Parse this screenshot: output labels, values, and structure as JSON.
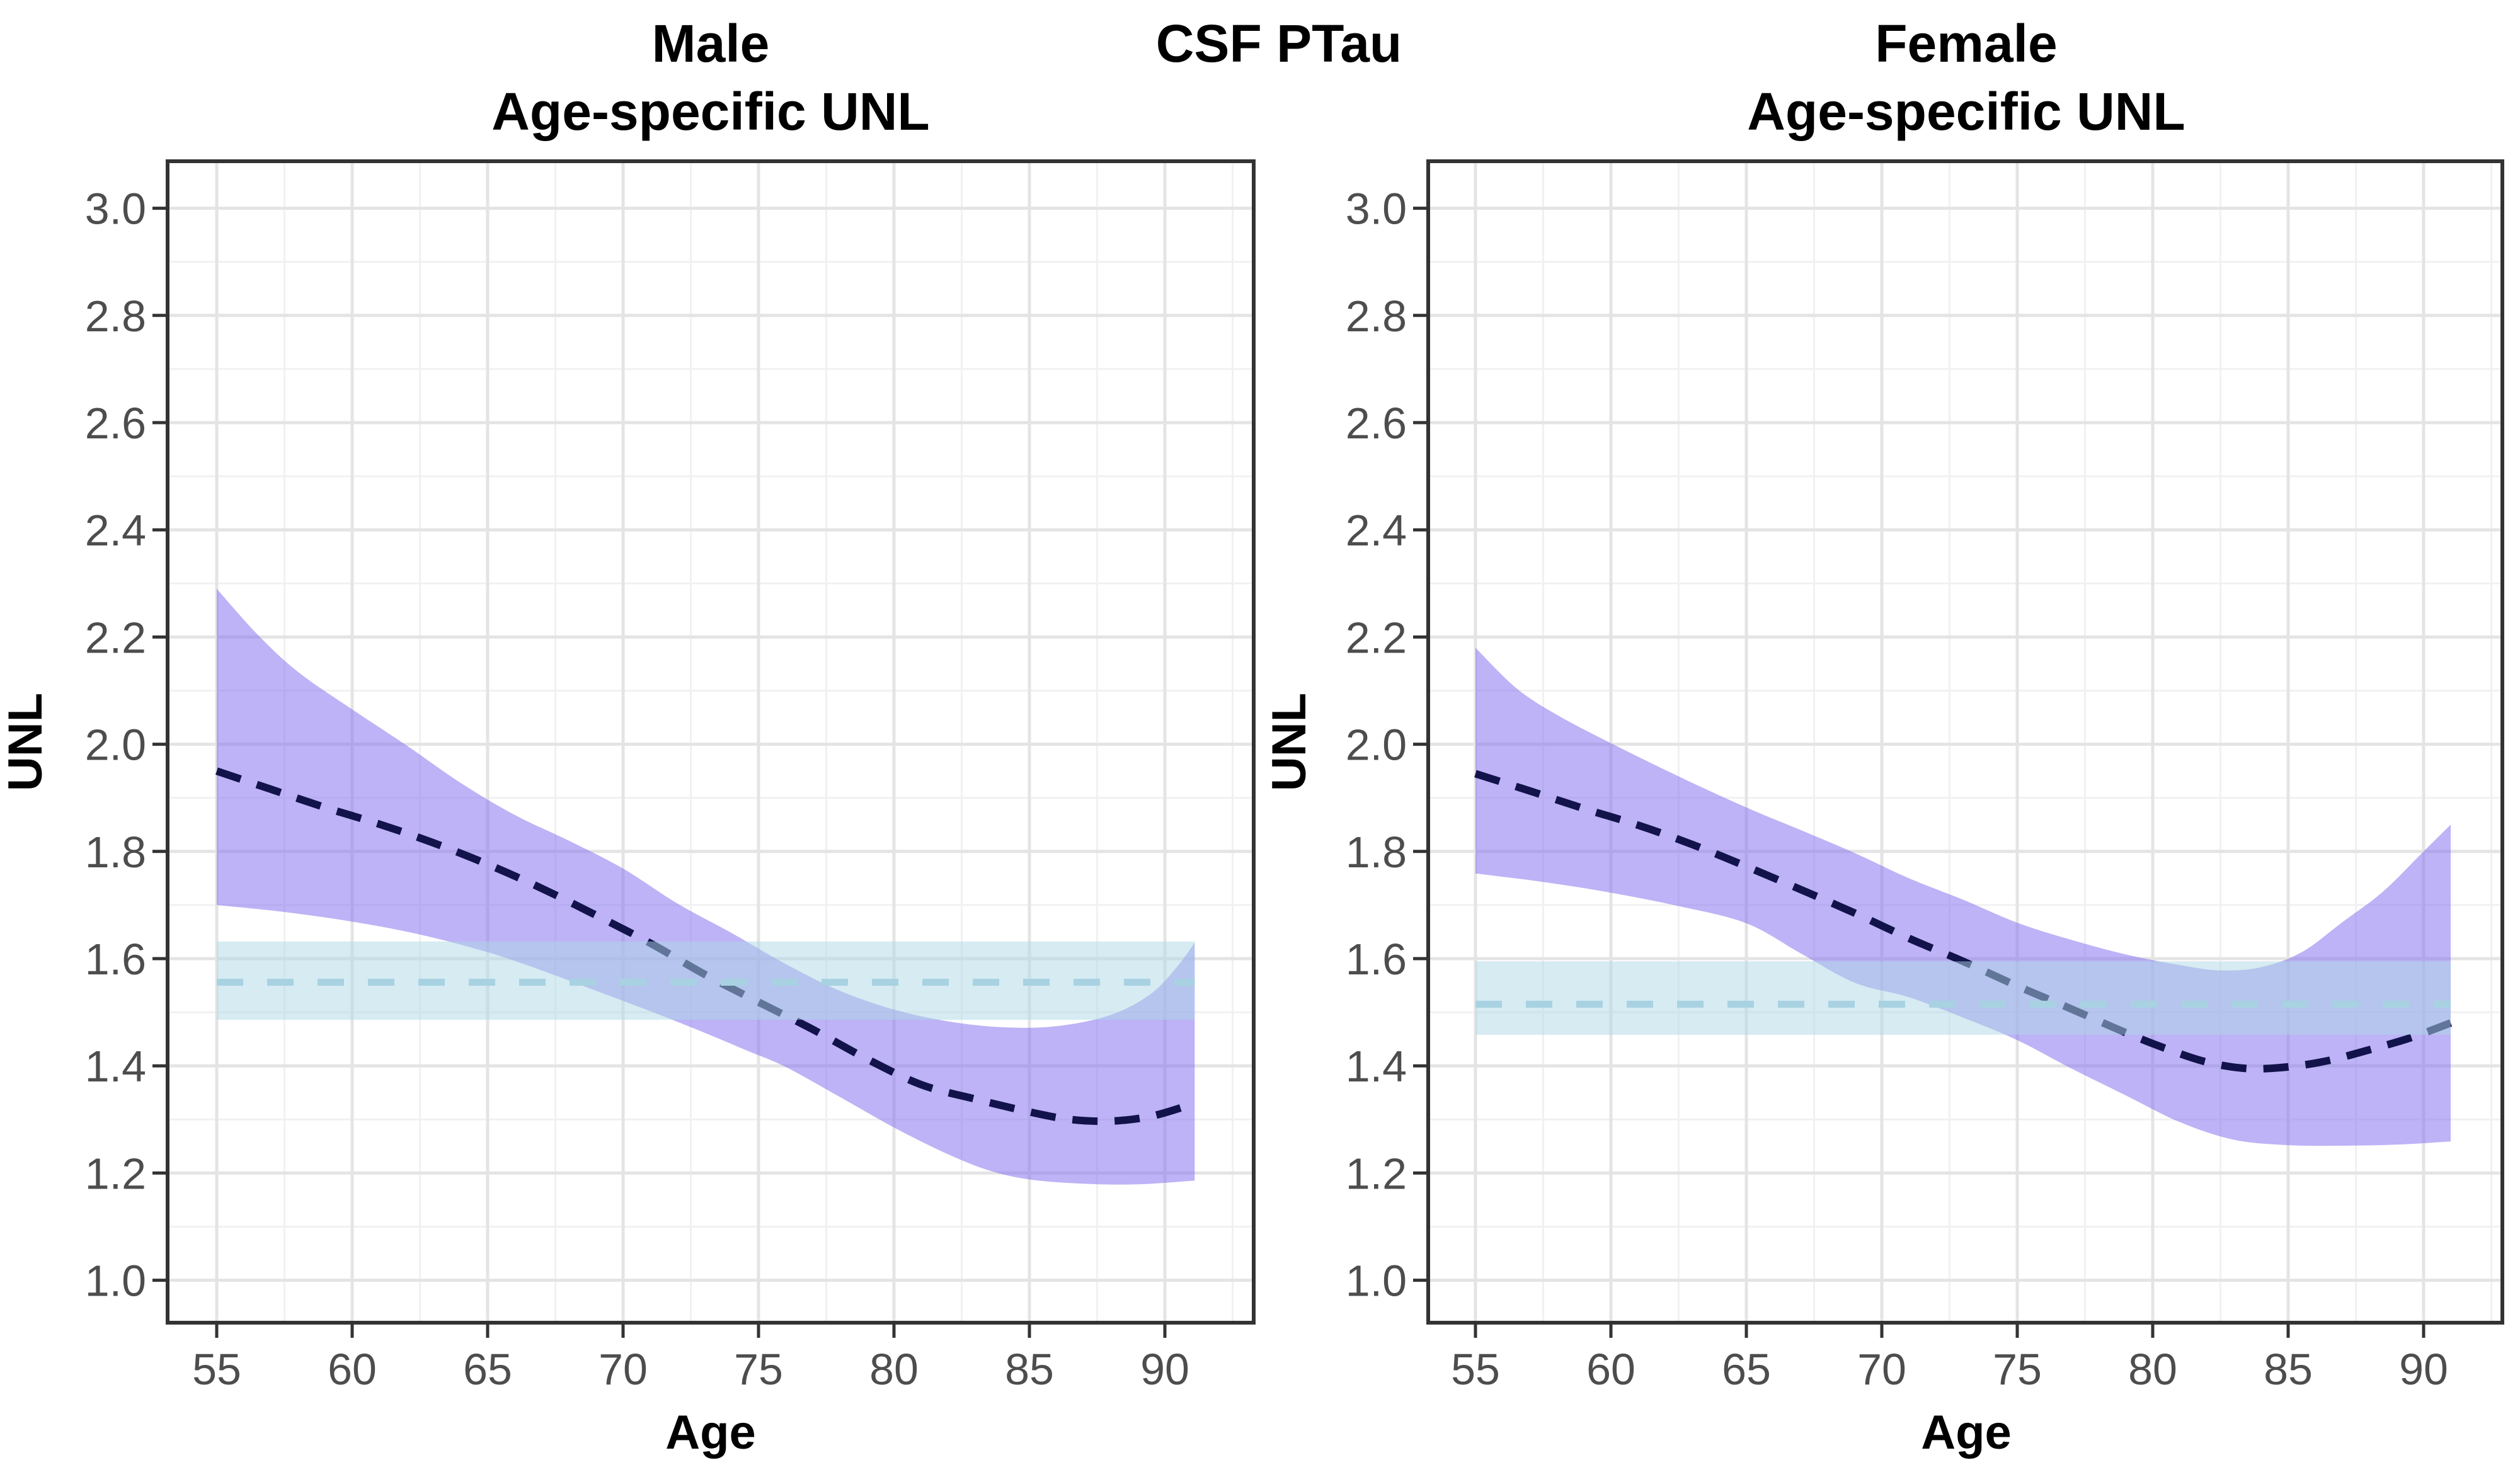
{
  "title": "CSF PTau",
  "axes": {
    "x": {
      "label": "Age",
      "ticks": [
        55,
        60,
        65,
        70,
        75,
        80,
        85,
        90
      ],
      "tick_labels": [
        "55",
        "60",
        "65",
        "70",
        "75",
        "80",
        "85",
        "90"
      ],
      "range": [
        53.2,
        93.3
      ]
    },
    "y": {
      "label": "UNL",
      "ticks": [
        3.0,
        2.8,
        2.6,
        2.4,
        2.2,
        2.0,
        1.8,
        1.6,
        1.4,
        1.2,
        1.0
      ],
      "tick_labels": [
        "3.0",
        "2.8",
        "2.6",
        "2.4",
        "2.2",
        "2.0",
        "1.8",
        "1.6",
        "1.4",
        "1.2",
        "1.0"
      ],
      "range": [
        0.92,
        3.09
      ]
    }
  },
  "colors": {
    "ribbon_fill": "#7B68EE",
    "ribbon_opacity": 0.5,
    "band_fill": "#ADD8E6",
    "band_opacity": 0.5,
    "line_dashed": "#13134B",
    "band_line_dashed": "#A8D2E2",
    "grid_major": "#E4E4E4",
    "grid_minor": "#F1F1F1",
    "panel_border": "#333333",
    "tick_mark": "#333333",
    "tick_text": "#4D4D4D",
    "title_text": "#000000"
  },
  "chart_data": [
    {
      "type": "line",
      "panel": "male",
      "title_line1": "Male",
      "title_line2": "Age-specific UNL",
      "xlabel": "Age",
      "ylabel": "UNL",
      "x_range_years": [
        55,
        91.1
      ],
      "grid": "on",
      "legend": "none",
      "series": [
        {
          "name": "age_specific_unl",
          "style": "dashed dark navy",
          "points": [
            [
              55,
              1.95
            ],
            [
              57,
              1.916
            ],
            [
              59,
              1.882
            ],
            [
              61,
              1.851
            ],
            [
              63,
              1.816
            ],
            [
              65,
              1.776
            ],
            [
              67,
              1.731
            ],
            [
              69,
              1.681
            ],
            [
              71,
              1.629
            ],
            [
              73,
              1.571
            ],
            [
              75,
              1.519
            ],
            [
              77,
              1.468
            ],
            [
              79,
              1.413
            ],
            [
              81,
              1.365
            ],
            [
              83,
              1.338
            ],
            [
              85,
              1.314
            ],
            [
              86.5,
              1.3
            ],
            [
              88,
              1.297
            ],
            [
              89.5,
              1.306
            ],
            [
              91.1,
              1.33
            ]
          ]
        },
        {
          "name": "ci_upper",
          "style": "ribbon upper edge",
          "points": [
            [
              55,
              2.29
            ],
            [
              56.5,
              2.205
            ],
            [
              58,
              2.135
            ],
            [
              60,
              2.065
            ],
            [
              62,
              1.998
            ],
            [
              64,
              1.928
            ],
            [
              66,
              1.868
            ],
            [
              68,
              1.82
            ],
            [
              70,
              1.768
            ],
            [
              72,
              1.703
            ],
            [
              74,
              1.648
            ],
            [
              76,
              1.59
            ],
            [
              78,
              1.54
            ],
            [
              80,
              1.505
            ],
            [
              82,
              1.483
            ],
            [
              84,
              1.472
            ],
            [
              86,
              1.474
            ],
            [
              88,
              1.495
            ],
            [
              89.5,
              1.535
            ],
            [
              90.5,
              1.588
            ],
            [
              91.1,
              1.63
            ]
          ]
        },
        {
          "name": "ci_lower",
          "style": "ribbon lower edge",
          "points": [
            [
              55,
              1.7
            ],
            [
              57.5,
              1.687
            ],
            [
              60,
              1.669
            ],
            [
              62.5,
              1.645
            ],
            [
              65,
              1.612
            ],
            [
              67,
              1.578
            ],
            [
              69,
              1.54
            ],
            [
              71,
              1.502
            ],
            [
              73,
              1.462
            ],
            [
              74.5,
              1.43
            ],
            [
              76,
              1.398
            ],
            [
              78,
              1.342
            ],
            [
              80,
              1.285
            ],
            [
              82,
              1.235
            ],
            [
              83.5,
              1.205
            ],
            [
              85,
              1.188
            ],
            [
              87,
              1.18
            ],
            [
              89,
              1.179
            ],
            [
              91.1,
              1.186
            ]
          ]
        }
      ],
      "constant_unl_band": {
        "lower": 1.486,
        "center": 1.556,
        "upper": 1.632,
        "x_range_years": [
          55,
          91.1
        ],
        "style": "light blue band with dashed center line"
      }
    },
    {
      "type": "line",
      "panel": "female",
      "title_line1": "Female",
      "title_line2": "Age-specific UNL",
      "xlabel": "Age",
      "ylabel": "UNL",
      "x_range_years": [
        55,
        91.0
      ],
      "grid": "on",
      "legend": "none",
      "series": [
        {
          "name": "age_specific_unl",
          "style": "dashed dark navy",
          "points": [
            [
              55,
              1.945
            ],
            [
              57,
              1.913
            ],
            [
              59,
              1.88
            ],
            [
              61,
              1.849
            ],
            [
              63,
              1.813
            ],
            [
              65,
              1.772
            ],
            [
              67,
              1.729
            ],
            [
              69,
              1.685
            ],
            [
              71,
              1.638
            ],
            [
              73,
              1.595
            ],
            [
              75,
              1.549
            ],
            [
              77,
              1.506
            ],
            [
              79,
              1.462
            ],
            [
              80.5,
              1.432
            ],
            [
              82,
              1.407
            ],
            [
              83.5,
              1.395
            ],
            [
              85,
              1.398
            ],
            [
              86.5,
              1.41
            ],
            [
              88,
              1.43
            ],
            [
              89.5,
              1.452
            ],
            [
              91,
              1.48
            ]
          ]
        },
        {
          "name": "ci_upper",
          "style": "ribbon upper edge",
          "points": [
            [
              55,
              2.18
            ],
            [
              56.5,
              2.105
            ],
            [
              58,
              2.055
            ],
            [
              60,
              2.002
            ],
            [
              62.5,
              1.94
            ],
            [
              65,
              1.882
            ],
            [
              67,
              1.84
            ],
            [
              69,
              1.797
            ],
            [
              71,
              1.75
            ],
            [
              73,
              1.71
            ],
            [
              75,
              1.667
            ],
            [
              77,
              1.635
            ],
            [
              79,
              1.608
            ],
            [
              81,
              1.588
            ],
            [
              82.5,
              1.578
            ],
            [
              84,
              1.584
            ],
            [
              85.5,
              1.612
            ],
            [
              87,
              1.668
            ],
            [
              88.5,
              1.725
            ],
            [
              90,
              1.8
            ],
            [
              91,
              1.85
            ]
          ]
        },
        {
          "name": "ci_lower",
          "style": "ribbon lower edge",
          "points": [
            [
              55,
              1.759
            ],
            [
              57.5,
              1.743
            ],
            [
              60,
              1.723
            ],
            [
              62.5,
              1.698
            ],
            [
              65,
              1.666
            ],
            [
              67,
              1.61
            ],
            [
              69,
              1.555
            ],
            [
              71,
              1.528
            ],
            [
              73,
              1.49
            ],
            [
              75,
              1.448
            ],
            [
              77,
              1.395
            ],
            [
              79,
              1.345
            ],
            [
              81,
              1.295
            ],
            [
              83,
              1.262
            ],
            [
              85,
              1.252
            ],
            [
              87,
              1.251
            ],
            [
              89,
              1.253
            ],
            [
              91,
              1.259
            ]
          ]
        }
      ],
      "constant_unl_band": {
        "lower": 1.458,
        "center": 1.515,
        "upper": 1.595,
        "x_range_years": [
          55,
          91.0
        ],
        "style": "light blue band with dashed center line"
      }
    }
  ]
}
